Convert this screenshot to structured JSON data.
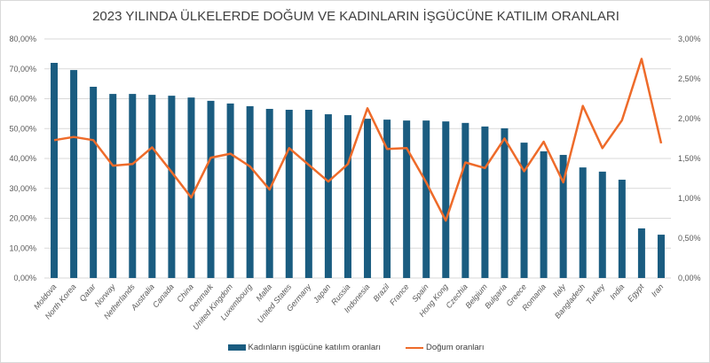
{
  "chart_data": {
    "type": "bar+line",
    "title": "2023 YILINDA ÜLKELERDE DOĞUM VE KADINLARIN İŞGÜCÜNE KATILIM ORANLARI",
    "categories": [
      "Moldova",
      "North Korea",
      "Qatar",
      "Norway",
      "Netherlands",
      "Australia",
      "Canada",
      "China",
      "Denmark",
      "United Kingdom",
      "Luxembourg",
      "Malta",
      "United States",
      "Germany",
      "Japan",
      "Russia",
      "Indonesia",
      "Brazil",
      "France",
      "Spain",
      "Hong Kong",
      "Czechia",
      "Belgium",
      "Bulgaria",
      "Greece",
      "Romania",
      "Italy",
      "Bangladesh",
      "Turkey",
      "India",
      "Egypt",
      "Iran"
    ],
    "series": [
      {
        "name": "Kadınların işgücüne katılım oranları",
        "type": "bar",
        "axis": "left",
        "color": "#1a5c80",
        "values": [
          72.0,
          69.6,
          64.0,
          61.6,
          61.6,
          61.3,
          61.0,
          60.4,
          59.3,
          58.4,
          57.5,
          56.6,
          56.3,
          56.3,
          54.8,
          54.5,
          53.3,
          53.0,
          52.7,
          52.7,
          52.4,
          51.9,
          50.7,
          50.1,
          45.3,
          42.4,
          41.2,
          37.0,
          35.6,
          32.9,
          16.6,
          14.5
        ]
      },
      {
        "name": "Doğum oranları",
        "type": "line",
        "axis": "right",
        "color": "#ee6b2a",
        "values": [
          1.73,
          1.77,
          1.73,
          1.41,
          1.43,
          1.64,
          1.33,
          1.01,
          1.51,
          1.56,
          1.4,
          1.11,
          1.63,
          1.42,
          1.21,
          1.43,
          2.13,
          1.62,
          1.63,
          1.2,
          0.72,
          1.45,
          1.38,
          1.75,
          1.34,
          1.71,
          1.2,
          2.16,
          1.63,
          1.98,
          2.75,
          1.69
        ]
      }
    ],
    "y_left": {
      "range": [
        0,
        80
      ],
      "ticks": [
        "0,00%",
        "10,00%",
        "20,00%",
        "30,00%",
        "40,00%",
        "50,00%",
        "60,00%",
        "70,00%",
        "80,00%"
      ]
    },
    "y_right": {
      "range": [
        0,
        3
      ],
      "ticks": [
        "0,00%",
        "0,50%",
        "1,00%",
        "1,50%",
        "2,00%",
        "2,50%",
        "3,00%"
      ]
    },
    "grid": true,
    "legend": "bottom"
  }
}
